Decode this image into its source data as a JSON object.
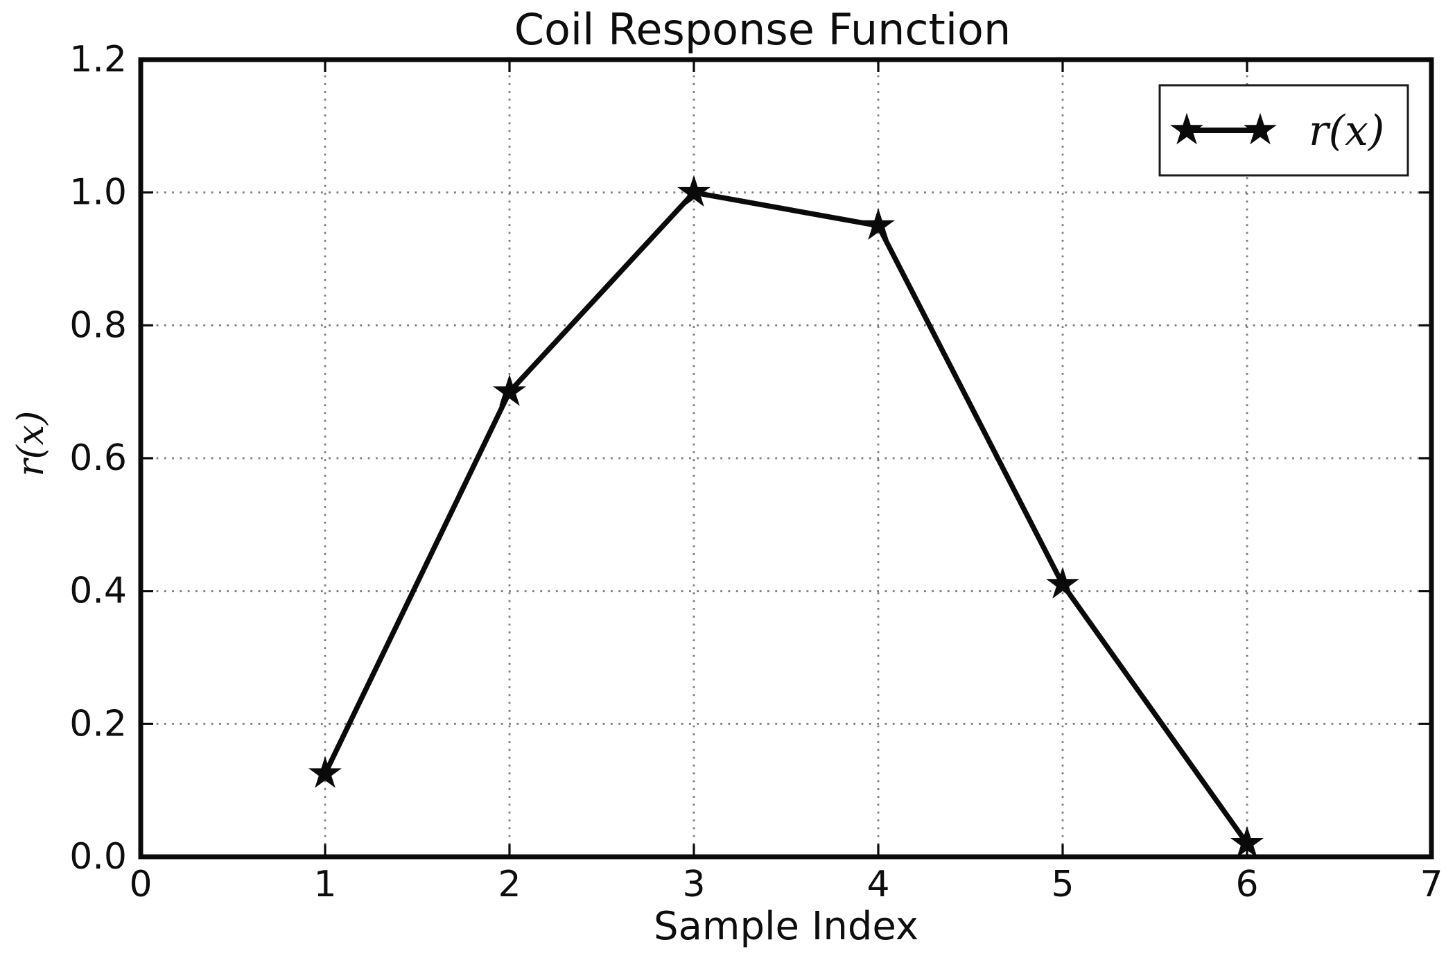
{
  "figure": {
    "background_color": "#ffffff",
    "frame_color": "#0a0a0a",
    "grid_color": "#7d7d7d",
    "text_color": "#0d0d0d"
  },
  "chart_data": {
    "type": "line",
    "title": "Coil Response Function",
    "xlabel": "Sample Index",
    "ylabel": "r(x)",
    "xlim": [
      0,
      7
    ],
    "ylim": [
      0.0,
      1.2
    ],
    "x_ticks": [
      0,
      1,
      2,
      3,
      4,
      5,
      6,
      7
    ],
    "x_tick_labels": [
      "0",
      "1",
      "2",
      "3",
      "4",
      "5",
      "6",
      "7"
    ],
    "y_ticks": [
      0.0,
      0.2,
      0.4,
      0.6,
      0.8,
      1.0,
      1.2
    ],
    "y_tick_labels": [
      "0.0",
      "0.2",
      "0.4",
      "0.6",
      "0.8",
      "1.0",
      "1.2"
    ],
    "grid": true,
    "grid_style": "dotted",
    "legend": {
      "position": "upper right",
      "entries": [
        "r(x)"
      ]
    },
    "series": [
      {
        "name": "r(x)",
        "marker": "star",
        "color": "#0a0a0a",
        "line_width": 7.5,
        "x": [
          1,
          2,
          3,
          4,
          5,
          6
        ],
        "y": [
          0.125,
          0.7,
          1.0,
          0.95,
          0.41,
          0.02
        ]
      }
    ]
  }
}
